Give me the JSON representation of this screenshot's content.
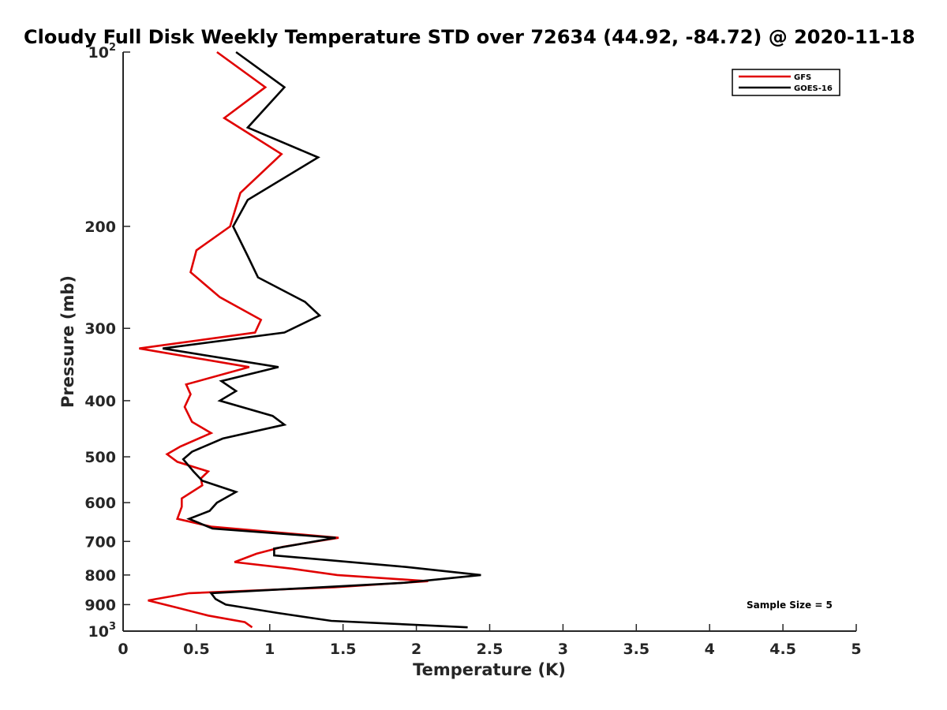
{
  "chart_data": {
    "type": "line",
    "title": "Cloudy Full Disk Weekly Temperature STD over 72634 (44.92, -84.72) @ 2020-11-18",
    "xlabel": "Temperature (K)",
    "ylabel": "Pressure (mb)",
    "xlim": [
      0,
      5
    ],
    "ylim": [
      100,
      1000
    ],
    "y_scale": "log",
    "y_reversed": true,
    "grid": false,
    "legend_position": "top-right",
    "x_ticks": [
      "0",
      "0.5",
      "1",
      "1.5",
      "2",
      "2.5",
      "3",
      "3.5",
      "4",
      "4.5",
      "5"
    ],
    "y_ticks": [
      {
        "value": 100,
        "base": "10",
        "exp": "2"
      },
      {
        "value": 200,
        "label": "200"
      },
      {
        "value": 300,
        "label": "300"
      },
      {
        "value": 400,
        "label": "400"
      },
      {
        "value": 500,
        "label": "500"
      },
      {
        "value": 600,
        "label": "600"
      },
      {
        "value": 700,
        "label": "700"
      },
      {
        "value": 800,
        "label": "800"
      },
      {
        "value": 900,
        "label": "900"
      },
      {
        "value": 1000,
        "base": "10",
        "exp": "3"
      }
    ],
    "annotation": "Sample Size = 5",
    "series": [
      {
        "name": "GFS",
        "color": "#e00000",
        "points": [
          [
            0.64,
            100
          ],
          [
            0.97,
            115
          ],
          [
            0.69,
            130
          ],
          [
            1.08,
            150
          ],
          [
            0.8,
            175
          ],
          [
            0.73,
            200
          ],
          [
            0.5,
            220
          ],
          [
            0.46,
            240
          ],
          [
            0.66,
            265
          ],
          [
            0.94,
            290
          ],
          [
            0.9,
            305
          ],
          [
            0.11,
            325
          ],
          [
            0.86,
            350
          ],
          [
            0.43,
            375
          ],
          [
            0.46,
            390
          ],
          [
            0.42,
            410
          ],
          [
            0.47,
            435
          ],
          [
            0.6,
            455
          ],
          [
            0.39,
            480
          ],
          [
            0.3,
            495
          ],
          [
            0.37,
            510
          ],
          [
            0.58,
            530
          ],
          [
            0.53,
            545
          ],
          [
            0.54,
            560
          ],
          [
            0.4,
            590
          ],
          [
            0.4,
            610
          ],
          [
            0.37,
            640
          ],
          [
            0.6,
            660
          ],
          [
            1.47,
            690
          ],
          [
            1.09,
            715
          ],
          [
            0.91,
            735
          ],
          [
            0.76,
            760
          ],
          [
            1.15,
            780
          ],
          [
            1.46,
            800
          ],
          [
            2.08,
            820
          ],
          [
            1.44,
            840
          ],
          [
            0.45,
            860
          ],
          [
            0.17,
            885
          ],
          [
            0.36,
            910
          ],
          [
            0.58,
            940
          ],
          [
            0.83,
            965
          ],
          [
            0.88,
            985
          ]
        ]
      },
      {
        "name": "GOES-16",
        "color": "#000000",
        "points": [
          [
            0.77,
            100
          ],
          [
            1.1,
            115
          ],
          [
            0.85,
            135
          ],
          [
            1.33,
            152
          ],
          [
            0.85,
            180
          ],
          [
            0.75,
            200
          ],
          [
            0.85,
            225
          ],
          [
            0.92,
            245
          ],
          [
            1.24,
            270
          ],
          [
            1.34,
            285
          ],
          [
            1.1,
            305
          ],
          [
            0.27,
            325
          ],
          [
            1.06,
            350
          ],
          [
            0.67,
            370
          ],
          [
            0.77,
            385
          ],
          [
            0.66,
            400
          ],
          [
            1.02,
            425
          ],
          [
            1.1,
            440
          ],
          [
            0.68,
            465
          ],
          [
            0.47,
            490
          ],
          [
            0.41,
            505
          ],
          [
            0.48,
            530
          ],
          [
            0.54,
            550
          ],
          [
            0.77,
            575
          ],
          [
            0.64,
            600
          ],
          [
            0.59,
            620
          ],
          [
            0.45,
            640
          ],
          [
            0.61,
            665
          ],
          [
            1.45,
            690
          ],
          [
            1.03,
            720
          ],
          [
            1.03,
            740
          ],
          [
            1.93,
            775
          ],
          [
            2.44,
            800
          ],
          [
            1.92,
            825
          ],
          [
            0.6,
            860
          ],
          [
            0.63,
            880
          ],
          [
            0.7,
            900
          ],
          [
            1.05,
            930
          ],
          [
            1.42,
            960
          ],
          [
            2.35,
            985
          ]
        ]
      }
    ]
  }
}
